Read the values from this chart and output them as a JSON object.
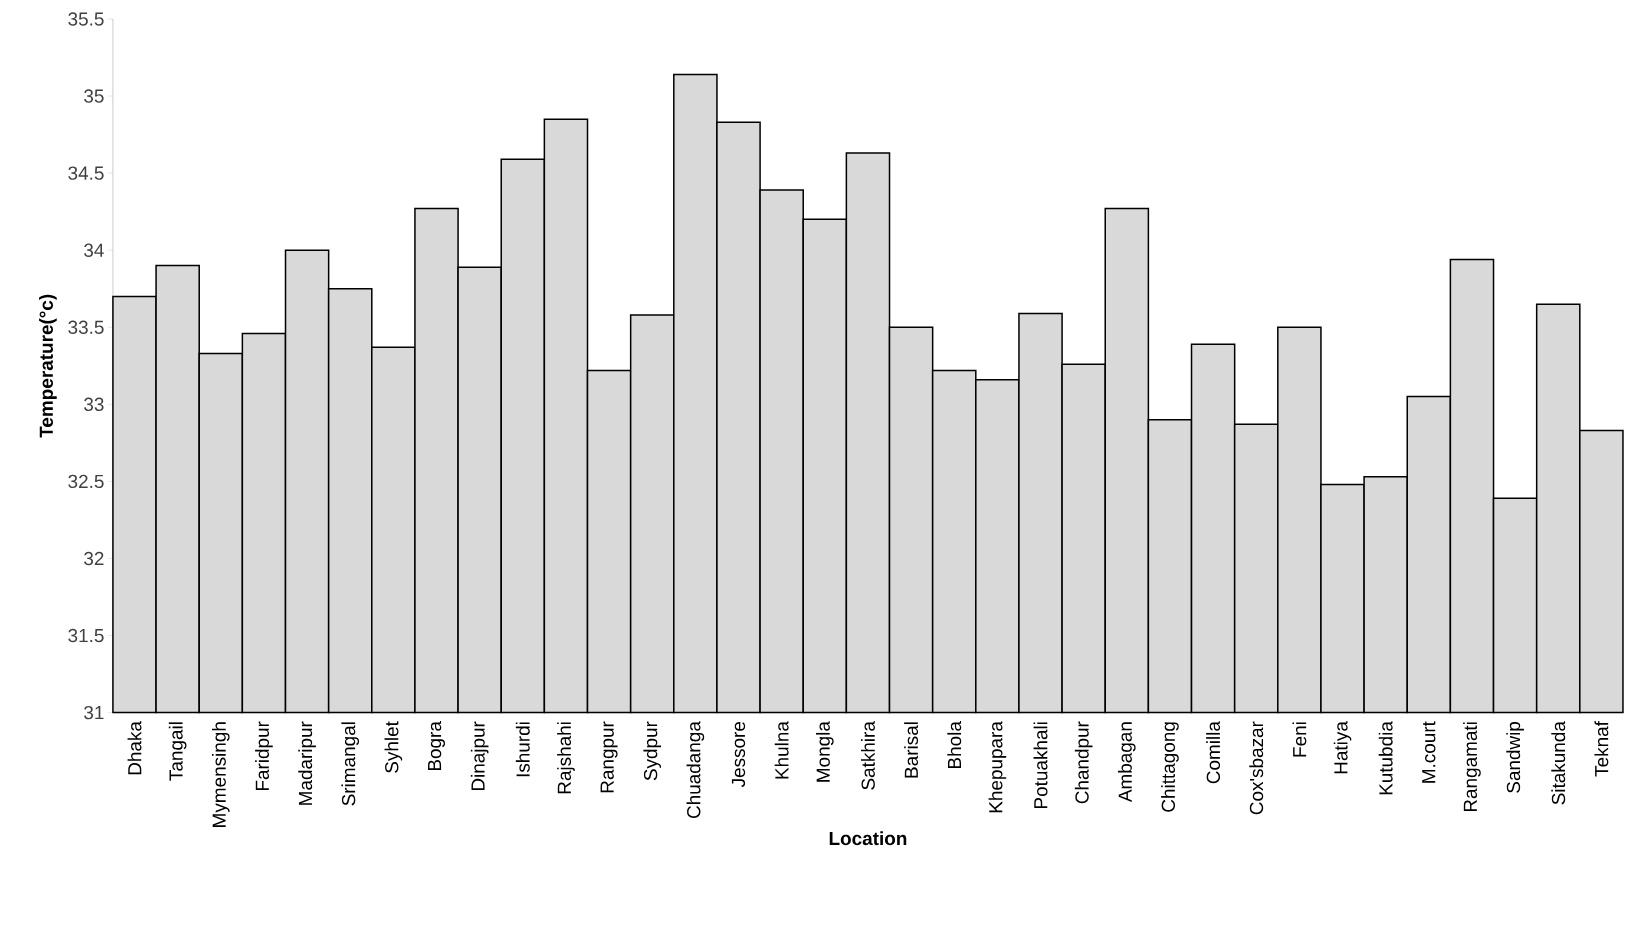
{
  "chart_data": {
    "type": "bar",
    "xlabel": "Location",
    "ylabel": "Temperature(°c)",
    "categories": [
      "Dhaka",
      "Tangail",
      "Mymensingh",
      "Faridpur",
      "Madaripur",
      "Srimangal",
      "Syhlet",
      "Bogra",
      "Dinajpur",
      "Ishurdi",
      "Rajshahi",
      "Rangpur",
      "Sydpur",
      "Chuadanga",
      "Jessore",
      "Khulna",
      "Mongla",
      "Satkhira",
      "Barisal",
      "Bhola",
      "Khepupara",
      "Potuakhali",
      "Chandpur",
      "Ambagan",
      "Chittagong",
      "Comilla",
      "Cox'sbazar",
      "Feni",
      "Hatiya",
      "Kutubdia",
      "M.court",
      "Rangamati",
      "Sandwip",
      "Sitakunda",
      "Teknaf"
    ],
    "values": [
      33.7,
      33.9,
      33.33,
      33.46,
      34.0,
      33.75,
      33.37,
      34.27,
      33.89,
      34.59,
      34.85,
      33.22,
      33.58,
      35.14,
      34.83,
      34.39,
      34.2,
      34.63,
      33.5,
      33.22,
      33.16,
      33.59,
      33.26,
      34.27,
      32.9,
      33.39,
      32.87,
      33.5,
      32.48,
      32.53,
      33.05,
      33.94,
      32.39,
      33.65,
      32.83
    ],
    "color": "#d9d9d9",
    "ylim": [
      31,
      35.5
    ],
    "yticks": [
      31,
      31.5,
      32,
      32.5,
      33,
      33.5,
      34,
      34.5,
      35,
      35.5
    ]
  }
}
